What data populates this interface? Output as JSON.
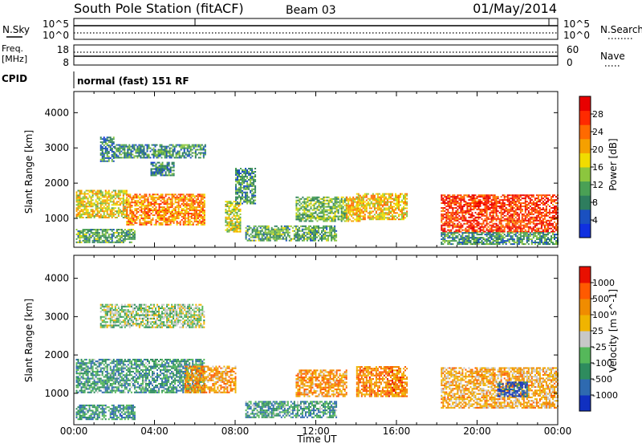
{
  "header": {
    "title": "South Pole Station (fitACF)",
    "beam": "Beam 03",
    "date": "01/May/2014"
  },
  "panels": {
    "nsky": {
      "left_label": "N.Sky",
      "right_label": "N.Search",
      "left_ticks": [
        "10^5",
        "10^0"
      ],
      "right_ticks": [
        "10^5",
        "10^0"
      ]
    },
    "freq": {
      "left_label_1": "Freq.",
      "left_label_2": "[MHz]",
      "right_label": "Nave",
      "left_ticks": [
        "18",
        "8"
      ],
      "right_ticks": [
        "60",
        "0"
      ]
    },
    "cpid": {
      "label": "CPID",
      "text": "normal (fast) 151 RF"
    }
  },
  "chart_data": [
    {
      "type": "heatmap",
      "name": "power",
      "ylabel": "Slant Range [km]",
      "xlabel": "Time UT",
      "x_ticks": [
        "00:00",
        "04:00",
        "08:00",
        "12:00",
        "16:00",
        "20:00",
        "00:00"
      ],
      "xlim_hours": [
        0,
        24
      ],
      "ylim_km": [
        180,
        4600
      ],
      "y_ticks": [
        1000,
        2000,
        3000,
        4000
      ],
      "colorbar": {
        "label": "Power [dB]",
        "ticks": [
          "4",
          "8",
          "12",
          "16",
          "20",
          "24",
          "28"
        ],
        "colors": [
          "#1030e0",
          "#1a50c0",
          "#2e7d5e",
          "#4aa055",
          "#8cc63e",
          "#f0dc00",
          "#f5a000",
          "#ff6a00",
          "#ff2a00",
          "#e80000"
        ]
      },
      "regions": [
        {
          "t0": 0.1,
          "t1": 2.6,
          "r0": 1000,
          "r1": 1800,
          "level": 0.55
        },
        {
          "t0": 2.6,
          "t1": 6.5,
          "r0": 800,
          "r1": 1700,
          "level": 0.7
        },
        {
          "t0": 0.1,
          "t1": 3.0,
          "r0": 300,
          "r1": 700,
          "level": 0.35
        },
        {
          "t0": 1.3,
          "t1": 2.0,
          "r0": 2600,
          "r1": 3300,
          "level": 0.25
        },
        {
          "t0": 2.0,
          "t1": 6.5,
          "r0": 2700,
          "r1": 3100,
          "level": 0.3
        },
        {
          "t0": 3.8,
          "t1": 5.0,
          "r0": 2200,
          "r1": 2600,
          "level": 0.25
        },
        {
          "t0": 7.5,
          "t1": 8.3,
          "r0": 600,
          "r1": 1500,
          "level": 0.5
        },
        {
          "t0": 8.0,
          "t1": 9.0,
          "r0": 1400,
          "r1": 2400,
          "level": 0.3
        },
        {
          "t0": 8.5,
          "t1": 13.0,
          "r0": 350,
          "r1": 800,
          "level": 0.35
        },
        {
          "t0": 11.0,
          "t1": 13.5,
          "r0": 900,
          "r1": 1600,
          "level": 0.4
        },
        {
          "t0": 13.5,
          "t1": 14.2,
          "r0": 900,
          "r1": 1600,
          "level": 0.6
        },
        {
          "t0": 14.0,
          "t1": 16.5,
          "r0": 950,
          "r1": 1700,
          "level": 0.6
        },
        {
          "t0": 18.2,
          "t1": 24.0,
          "r0": 600,
          "r1": 1650,
          "level": 0.85
        },
        {
          "t0": 18.2,
          "t1": 24.0,
          "r0": 250,
          "r1": 600,
          "level": 0.3
        }
      ]
    },
    {
      "type": "heatmap",
      "name": "velocity",
      "ylabel": "Slant Range [km]",
      "xlabel": "Time UT",
      "x_ticks": [
        "00:00",
        "04:00",
        "08:00",
        "12:00",
        "16:00",
        "20:00",
        "00:00"
      ],
      "xlim_hours": [
        0,
        24
      ],
      "ylim_km": [
        180,
        4600
      ],
      "y_ticks": [
        1000,
        2000,
        3000,
        4000
      ],
      "colorbar": {
        "label": "Velocity [m s^-1]",
        "ticks": [
          "1000",
          "500",
          "100",
          "25",
          "-25",
          "-100",
          "-500",
          "-1000"
        ],
        "colors": [
          "#1030c0",
          "#2e6ab0",
          "#2e8c5e",
          "#55b85a",
          "#c8c8c8",
          "#f0b400",
          "#f08c00",
          "#ff5a00",
          "#e81000"
        ]
      },
      "regions": [
        {
          "t0": 0.1,
          "t1": 6.5,
          "r0": 1000,
          "r1": 1900,
          "level": 0.3
        },
        {
          "t0": 5.5,
          "t1": 8.0,
          "r0": 1000,
          "r1": 1700,
          "level": 0.7
        },
        {
          "t0": 0.1,
          "t1": 3.0,
          "r0": 300,
          "r1": 700,
          "level": 0.28
        },
        {
          "t0": 1.3,
          "t1": 6.5,
          "r0": 2700,
          "r1": 3300,
          "level": 0.45
        },
        {
          "t0": 8.5,
          "t1": 13.0,
          "r0": 350,
          "r1": 800,
          "level": 0.3
        },
        {
          "t0": 11.0,
          "t1": 13.5,
          "r0": 900,
          "r1": 1600,
          "level": 0.7
        },
        {
          "t0": 14.0,
          "t1": 16.5,
          "r0": 900,
          "r1": 1700,
          "level": 0.75
        },
        {
          "t0": 18.2,
          "t1": 24.0,
          "r0": 600,
          "r1": 1650,
          "level": 0.65
        },
        {
          "t0": 21.0,
          "t1": 22.5,
          "r0": 900,
          "r1": 1300,
          "level": 0.1
        }
      ]
    }
  ]
}
